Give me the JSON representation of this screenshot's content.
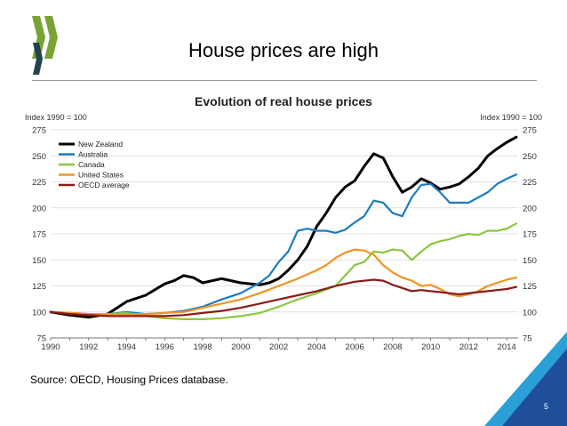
{
  "slide": {
    "title": "House prices are high",
    "source": "Source: OECD, Housing Prices database.",
    "page_number": "5"
  },
  "colors": {
    "logo_green": "#7aa336",
    "logo_dark": "#24424f",
    "corner_blue": "#1f4e9a",
    "corner_light": "#2a9fd8"
  },
  "chart_data": {
    "type": "line",
    "title": "Evolution of real house prices",
    "ylabel_left": "Index 1990 = 100",
    "ylabel_right": "Index 1990 = 100",
    "ylim": [
      75,
      275
    ],
    "xlim": [
      1990,
      2014.6
    ],
    "yticks": [
      75,
      100,
      125,
      150,
      175,
      200,
      225,
      250,
      275
    ],
    "xticks": [
      1990,
      1992,
      1994,
      1996,
      1998,
      2000,
      2002,
      2004,
      2006,
      2008,
      2010,
      2012,
      2014
    ],
    "grid": true,
    "legend_position": "top-left",
    "series": [
      {
        "name": "New Zealand",
        "color": "#000000",
        "x": [
          1990,
          1991,
          1992,
          1993,
          1993.5,
          1994,
          1995,
          1996,
          1996.5,
          1997,
          1997.5,
          1998,
          1999,
          2000,
          2001,
          2001.5,
          2002,
          2002.5,
          2003,
          2003.5,
          2004,
          2004.5,
          2005,
          2005.5,
          2006,
          2006.5,
          2007,
          2007.5,
          2008,
          2008.5,
          2009,
          2009.5,
          2010,
          2010.5,
          2011,
          2011.5,
          2012,
          2012.5,
          2013,
          2013.5,
          2014,
          2014.5
        ],
        "y": [
          100,
          97,
          95,
          98,
          104,
          110,
          116,
          127,
          130,
          135,
          133,
          128,
          132,
          128,
          126,
          128,
          132,
          140,
          150,
          163,
          182,
          195,
          210,
          220,
          226,
          240,
          252,
          248,
          230,
          215,
          220,
          228,
          224,
          218,
          220,
          223,
          230,
          238,
          250,
          257,
          263,
          268
        ]
      },
      {
        "name": "Australia",
        "color": "#1b7cc0",
        "x": [
          1990,
          1991,
          1992,
          1993,
          1994,
          1995,
          1996,
          1997,
          1998,
          1999,
          2000,
          2001,
          2001.5,
          2002,
          2002.5,
          2003,
          2003.5,
          2004,
          2004.5,
          2005,
          2005.5,
          2006,
          2006.5,
          2007,
          2007.5,
          2008,
          2008.5,
          2009,
          2009.5,
          2010,
          2010.5,
          2011,
          2011.5,
          2012,
          2012.5,
          2013,
          2013.5,
          2014,
          2014.5
        ],
        "y": [
          100,
          99,
          98,
          98,
          100,
          98,
          99,
          101,
          105,
          112,
          118,
          128,
          135,
          148,
          158,
          178,
          180,
          178,
          178,
          176,
          179,
          186,
          192,
          207,
          205,
          195,
          192,
          210,
          222,
          223,
          215,
          205,
          205,
          205,
          210,
          215,
          223,
          228,
          232
        ]
      },
      {
        "name": "Canada",
        "color": "#8dc63f",
        "x": [
          1990,
          1991,
          1992,
          1993,
          1994,
          1995,
          1996,
          1997,
          1998,
          1999,
          2000,
          2001,
          2002,
          2003,
          2004,
          2005,
          2005.5,
          2006,
          2006.5,
          2007,
          2007.5,
          2008,
          2008.5,
          2009,
          2009.5,
          2010,
          2010.5,
          2011,
          2011.5,
          2012,
          2012.5,
          2013,
          2013.5,
          2014,
          2014.5
        ],
        "y": [
          100,
          99,
          98,
          98,
          99,
          96,
          94,
          93,
          93,
          94,
          96,
          99,
          105,
          112,
          118,
          125,
          135,
          145,
          148,
          158,
          157,
          160,
          159,
          150,
          158,
          165,
          168,
          170,
          173,
          175,
          174,
          178,
          178,
          180,
          185
        ]
      },
      {
        "name": "United States",
        "color": "#f29422",
        "x": [
          1990,
          1991,
          1992,
          1993,
          1994,
          1995,
          1996,
          1997,
          1998,
          1999,
          2000,
          2001,
          2002,
          2003,
          2004,
          2004.5,
          2005,
          2005.5,
          2006,
          2006.5,
          2007,
          2007.5,
          2008,
          2008.5,
          2009,
          2009.5,
          2010,
          2010.5,
          2011,
          2011.5,
          2012,
          2012.5,
          2013,
          2013.5,
          2014,
          2014.5
        ],
        "y": [
          100,
          99,
          98,
          98,
          98,
          98,
          99,
          100,
          104,
          108,
          112,
          118,
          125,
          132,
          140,
          145,
          152,
          157,
          160,
          159,
          155,
          145,
          138,
          133,
          130,
          125,
          126,
          122,
          117,
          115,
          117,
          120,
          125,
          128,
          131,
          133
        ]
      },
      {
        "name": "OECD average",
        "color": "#8b1a1a",
        "x": [
          1990,
          1991,
          1992,
          1993,
          1994,
          1995,
          1996,
          1997,
          1998,
          1999,
          2000,
          2001,
          2002,
          2003,
          2004,
          2005,
          2006,
          2007,
          2007.5,
          2008,
          2008.5,
          2009,
          2009.5,
          2010,
          2010.5,
          2011,
          2011.5,
          2012,
          2012.5,
          2013,
          2013.5,
          2014,
          2014.5
        ],
        "y": [
          100,
          98,
          97,
          96,
          96,
          96,
          96,
          97,
          99,
          101,
          104,
          108,
          112,
          116,
          120,
          125,
          129,
          131,
          130,
          126,
          123,
          120,
          121,
          120,
          119,
          118,
          117,
          118,
          119,
          120,
          121,
          122,
          124
        ]
      }
    ]
  }
}
